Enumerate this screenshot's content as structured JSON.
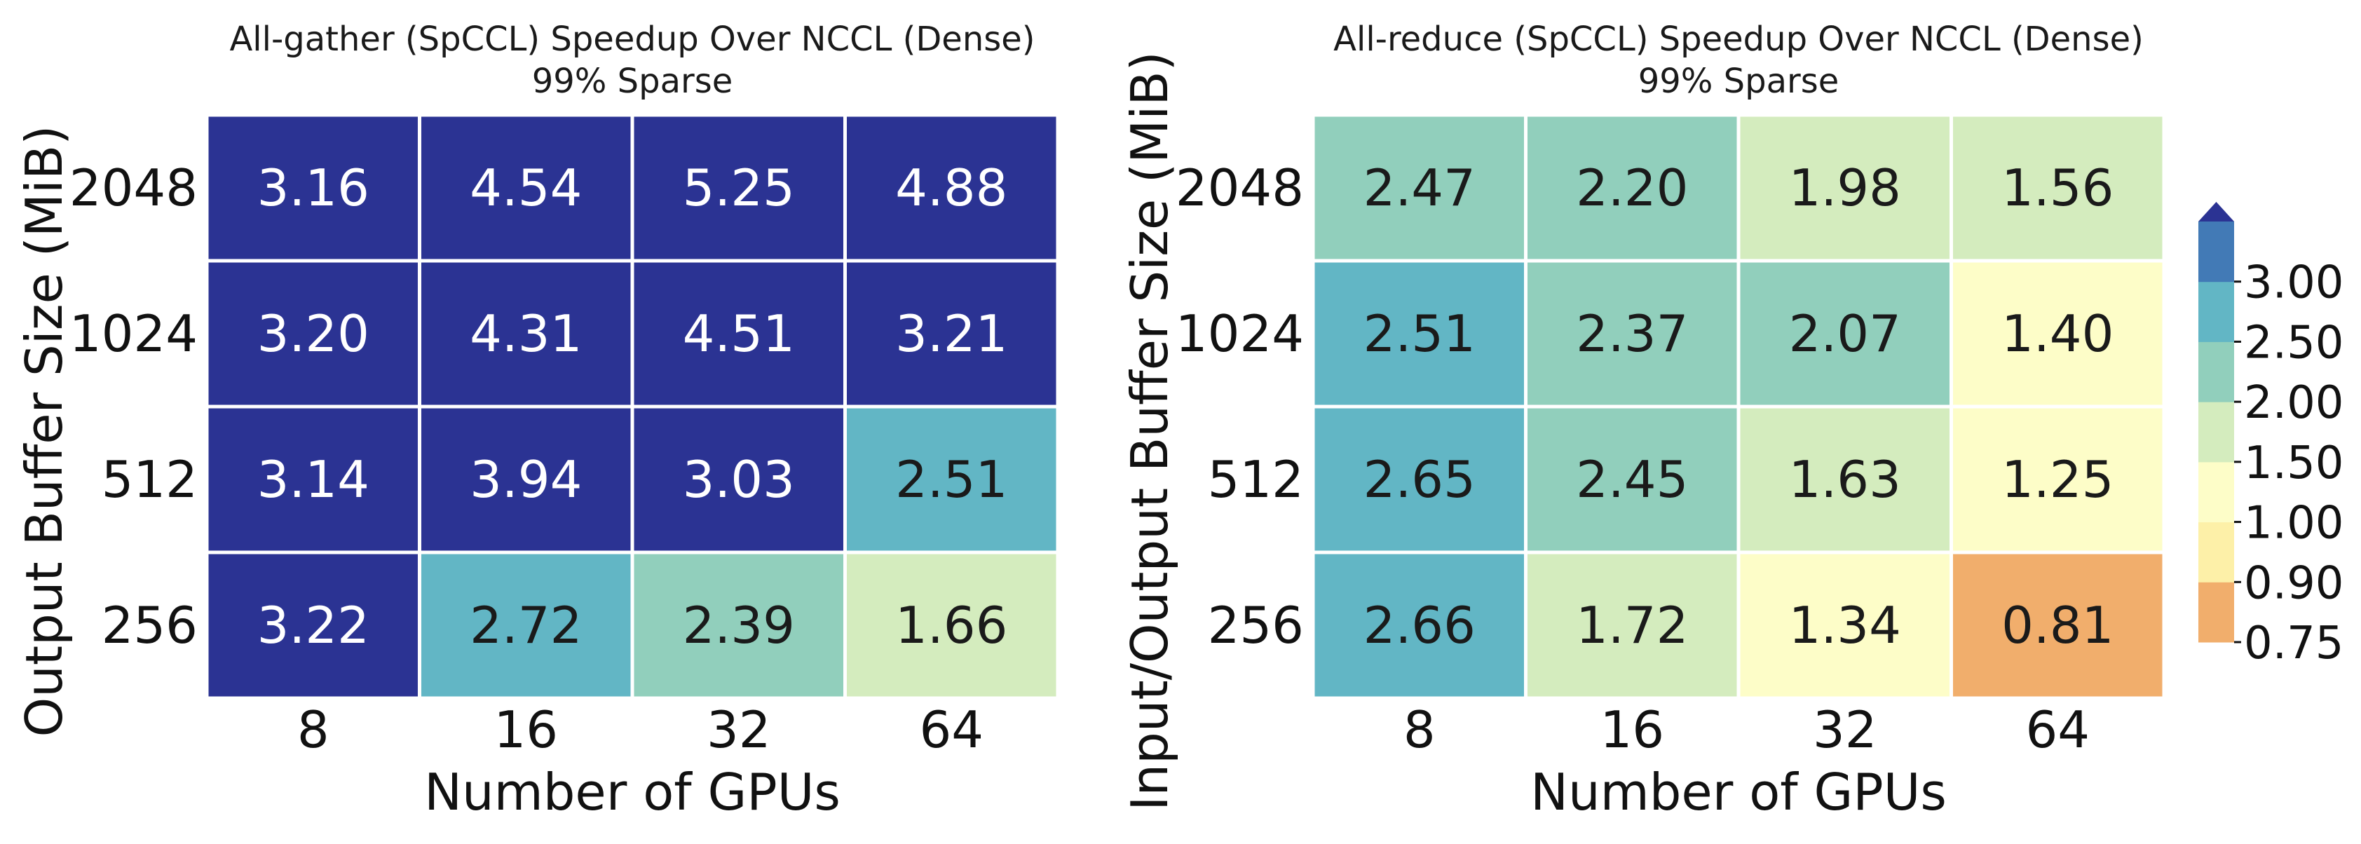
{
  "chart_data": [
    {
      "type": "heatmap",
      "title": "All-gather (SpCCL) Speedup Over NCCL (Dense)",
      "subtitle": "99% Sparse",
      "xlabel": "Number of GPUs",
      "ylabel": "Output Buffer Size (MiB)",
      "x_categories": [
        "8",
        "16",
        "32",
        "64"
      ],
      "y_categories": [
        "2048",
        "1024",
        "512",
        "256"
      ],
      "values": [
        [
          "3.16",
          "4.54",
          "5.25",
          "4.88"
        ],
        [
          "3.20",
          "4.31",
          "4.51",
          "3.21"
        ],
        [
          "3.14",
          "3.94",
          "3.03",
          "2.51"
        ],
        [
          "3.22",
          "2.72",
          "2.39",
          "1.66"
        ]
      ]
    },
    {
      "type": "heatmap",
      "title": "All-reduce (SpCCL) Speedup Over NCCL (Dense)",
      "subtitle": "99% Sparse",
      "xlabel": "Number of GPUs",
      "ylabel": "Input/Output Buffer Size (MiB)",
      "x_categories": [
        "8",
        "16",
        "32",
        "64"
      ],
      "y_categories": [
        "2048",
        "1024",
        "512",
        "256"
      ],
      "values": [
        [
          "2.47",
          "2.20",
          "1.98",
          "1.56"
        ],
        [
          "2.51",
          "2.37",
          "2.07",
          "1.40"
        ],
        [
          "2.65",
          "2.45",
          "1.63",
          "1.25"
        ],
        [
          "2.66",
          "1.72",
          "1.34",
          "0.81"
        ]
      ]
    }
  ],
  "colorbar": {
    "extend": "max",
    "ticks": [
      "0.75",
      "0.90",
      "1.00",
      "1.50",
      "2.00",
      "2.50",
      "3.00"
    ],
    "colors": [
      "#f1ae6c",
      "#fdf0a8",
      "#fdfdc8",
      "#d4ecbe",
      "#91cfbc",
      "#62b6c5",
      "#427ab6"
    ],
    "over_color": "#2b3393"
  }
}
